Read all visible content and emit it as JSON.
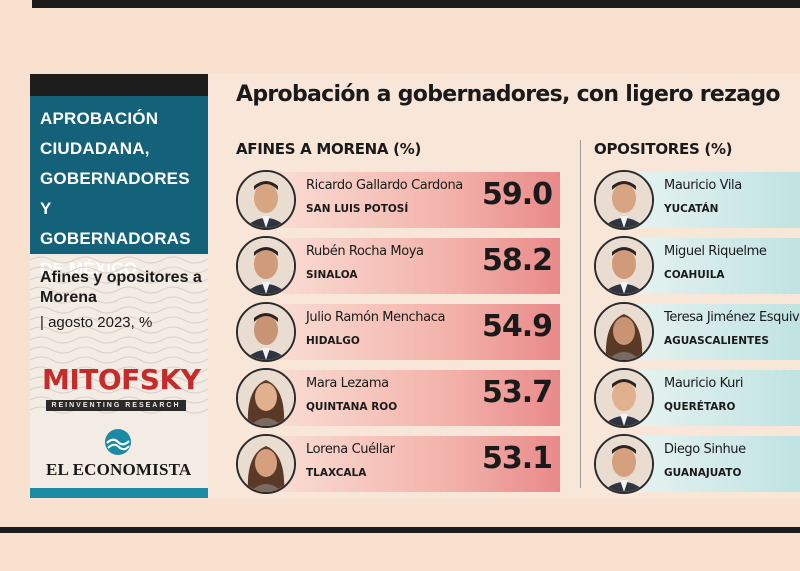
{
  "left_panel": {
    "title": "APROBACIÓN CIUDADANA, GOBERNADORES Y GOBERNADORAS DE MÉXICO",
    "subtitle": "Afines y opositores a Morena",
    "date_line": "| agosto 2023, %",
    "source_logo": "MITOFSKY",
    "source_tagline": "REINVENTING RESEARCH",
    "publisher": "EL ECONOMISTA"
  },
  "colors": {
    "teal": "#13627a",
    "accent_red": "#c52b2b",
    "bar_left": "#e98a8a",
    "bar_right": "#bfe3e2"
  },
  "chart_data": {
    "type": "bar",
    "title": "Aprobación a gobernadores, con ligero rezago",
    "series": [
      {
        "name": "AFINES A MORENA (%)",
        "items": [
          {
            "name": "Ricardo Gallardo Cardona",
            "state": "SAN LUIS POTOSÍ",
            "value": "59.0",
            "icon": "portrait-man"
          },
          {
            "name": "Rubén Rocha Moya",
            "state": "SINALOA",
            "value": "58.2",
            "icon": "portrait-man"
          },
          {
            "name": "Julio Ramón Menchaca",
            "state": "HIDALGO",
            "value": "54.9",
            "icon": "portrait-man"
          },
          {
            "name": "Mara Lezama",
            "state": "QUINTANA ROO",
            "value": "53.7",
            "icon": "portrait-woman"
          },
          {
            "name": "Lorena Cuéllar",
            "state": "TLAXCALA",
            "value": "53.1",
            "icon": "portrait-woman"
          }
        ]
      },
      {
        "name": "OPOSITORES (%)",
        "items": [
          {
            "name": "Mauricio Vila",
            "state": "YUCATÁN",
            "icon": "portrait-man"
          },
          {
            "name": "Miguel Riquelme",
            "state": "COAHUILA",
            "icon": "portrait-man"
          },
          {
            "name": "Teresa Jiménez Esquive",
            "state": "AGUASCALIENTES",
            "icon": "portrait-woman"
          },
          {
            "name": "Mauricio Kuri",
            "state": "QUERÉTARO",
            "icon": "portrait-man"
          },
          {
            "name": "Diego Sinhue",
            "state": "GUANAJUATO",
            "icon": "portrait-man"
          }
        ]
      }
    ]
  }
}
